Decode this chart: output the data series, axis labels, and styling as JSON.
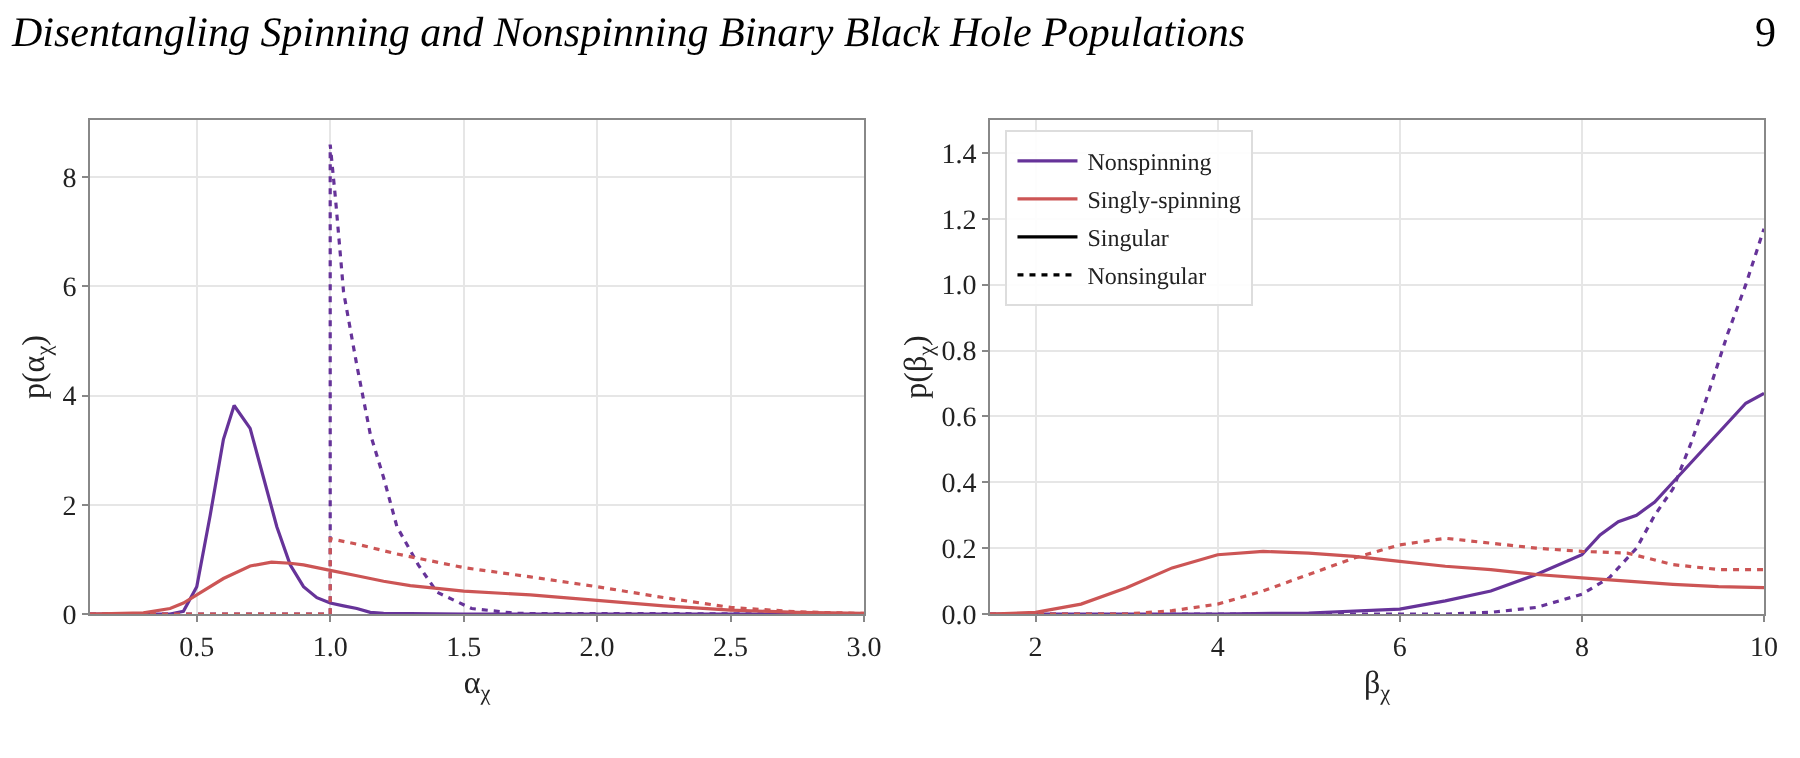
{
  "chart_data": [
    {
      "type": "line",
      "annotations": [
        "Disentangling Spinning and Nonspinning Binary Black Hole Populations",
        "9"
      ],
      "xlabel": "α$_{χ}$",
      "ylabel": "p(α$_{χ}$)",
      "xlim": [
        0.1,
        3.0
      ],
      "xticks": [
        {
          "value": 0.5,
          "label": "0.5"
        },
        {
          "value": 1,
          "label": "1.0"
        },
        {
          "value": 1.5,
          "label": "1.5"
        },
        {
          "value": 2,
          "label": "2.0"
        },
        {
          "value": 2.5,
          "label": "2.5"
        },
        {
          "value": 3,
          "label": "3.0"
        }
      ],
      "ylim": [
        0,
        9.05
      ],
      "yticks": [
        0,
        2,
        4,
        6,
        8
      ],
      "grid": true,
      "legend": false,
      "series": [
        {
          "color": "#663399",
          "line_style": "solid",
          "x": [
            0.1,
            0.4,
            0.45,
            0.5,
            0.55,
            0.6,
            0.64,
            0.7,
            0.75,
            0.8,
            0.85,
            0.9,
            0.95,
            1.0,
            1.05,
            1.1,
            1.15,
            1.2,
            1.5,
            3.0
          ],
          "values": [
            0,
            0,
            0.05,
            0.5,
            1.8,
            3.2,
            3.82,
            3.4,
            2.5,
            1.6,
            0.9,
            0.5,
            0.3,
            0.2,
            0.15,
            0.1,
            0.03,
            0.01,
            0,
            0
          ]
        },
        {
          "color": "#663399",
          "line_style": "dotted",
          "x": [
            0.1,
            1.0,
            1.0,
            1.02,
            1.05,
            1.1,
            1.15,
            1.2,
            1.25,
            1.33,
            1.4,
            1.53,
            1.7,
            3.0
          ],
          "values": [
            0,
            0,
            8.6,
            7.6,
            5.9,
            4.55,
            3.3,
            2.5,
            1.6,
            0.9,
            0.4,
            0.1,
            0.01,
            0
          ]
        },
        {
          "color": "#cc5555",
          "line_style": "solid",
          "x": [
            0.1,
            0.3,
            0.4,
            0.45,
            0.5,
            0.6,
            0.7,
            0.78,
            0.85,
            0.9,
            1.0,
            1.1,
            1.2,
            1.3,
            1.5,
            1.75,
            2.0,
            2.25,
            2.5,
            2.75,
            3.0
          ],
          "values": [
            0,
            0.02,
            0.1,
            0.2,
            0.35,
            0.65,
            0.88,
            0.95,
            0.93,
            0.9,
            0.8,
            0.7,
            0.6,
            0.52,
            0.42,
            0.35,
            0.25,
            0.15,
            0.07,
            0.03,
            0.01
          ]
        },
        {
          "color": "#cc5555",
          "line_style": "dotted",
          "x": [
            0.1,
            1.0,
            1.0,
            1.1,
            1.25,
            1.5,
            1.75,
            2.0,
            2.25,
            2.5,
            2.75,
            3.0
          ],
          "values": [
            0,
            0,
            1.38,
            1.28,
            1.1,
            0.85,
            0.68,
            0.5,
            0.3,
            0.12,
            0.04,
            0.01
          ]
        }
      ]
    },
    {
      "type": "line",
      "xlabel": "β$_{χ}$",
      "ylabel": "p(β$_{χ}$)",
      "xlim": [
        1.5,
        10
      ],
      "xticks": [
        2,
        4,
        6,
        8,
        10
      ],
      "ylim": [
        0,
        1.5
      ],
      "yticks": [
        {
          "value": 0,
          "label": "0.0"
        },
        {
          "value": 0.2,
          "label": "0.2"
        },
        {
          "value": 0.4,
          "label": "0.4"
        },
        {
          "value": 0.6,
          "label": "0.6"
        },
        {
          "value": 0.8,
          "label": "0.8"
        },
        {
          "value": 1,
          "label": "1.0"
        },
        {
          "value": 1.2,
          "label": "1.2"
        },
        {
          "value": 1.4,
          "label": "1.4"
        }
      ],
      "grid": true,
      "legend": "top left",
      "series": [
        {
          "name": "Nonspinning",
          "color": "#663399",
          "line_style": "solid",
          "x": [
            1.5,
            4,
            5,
            6,
            6.5,
            7,
            7.5,
            8,
            8.2,
            8.4,
            8.6,
            8.8,
            9,
            9.2,
            9.4,
            9.6,
            9.8,
            10
          ],
          "values": [
            0,
            0,
            0.003,
            0.015,
            0.04,
            0.07,
            0.12,
            0.18,
            0.24,
            0.28,
            0.3,
            0.34,
            0.4,
            0.46,
            0.52,
            0.58,
            0.64,
            0.67
          ]
        },
        {
          "color": "#663399",
          "line_style": "dotted",
          "x": [
            1.5,
            6.5,
            7,
            7.5,
            8,
            8.3,
            8.6,
            8.8,
            9,
            9.2,
            9.4,
            9.6,
            9.8,
            10
          ],
          "values": [
            0,
            0,
            0.005,
            0.02,
            0.06,
            0.11,
            0.2,
            0.3,
            0.38,
            0.52,
            0.68,
            0.85,
            1.0,
            1.17
          ]
        },
        {
          "name": "Singly-spinning",
          "color": "#cc5555",
          "line_style": "solid",
          "x": [
            1.5,
            2,
            2.5,
            3,
            3.5,
            4,
            4.5,
            5,
            5.5,
            6,
            6.5,
            7,
            7.5,
            8,
            8.5,
            9,
            9.5,
            10
          ],
          "values": [
            0,
            0.005,
            0.03,
            0.08,
            0.14,
            0.18,
            0.19,
            0.185,
            0.175,
            0.16,
            0.145,
            0.135,
            0.12,
            0.11,
            0.1,
            0.09,
            0.083,
            0.08
          ]
        },
        {
          "color": "#cc5555",
          "line_style": "dotted",
          "x": [
            1.5,
            3,
            3.5,
            4,
            4.5,
            5,
            5.5,
            6,
            6.5,
            7,
            7.5,
            8,
            8.5,
            9,
            9.5,
            10
          ],
          "values": [
            0,
            0,
            0.01,
            0.03,
            0.07,
            0.12,
            0.17,
            0.21,
            0.23,
            0.215,
            0.2,
            0.19,
            0.185,
            0.15,
            0.135,
            0.135
          ]
        },
        {
          "name": "Singular",
          "color": "#000000",
          "line_style": "solid"
        },
        {
          "name": "Nonsingular",
          "color": "#000000",
          "line_style": "dotted"
        }
      ]
    }
  ]
}
